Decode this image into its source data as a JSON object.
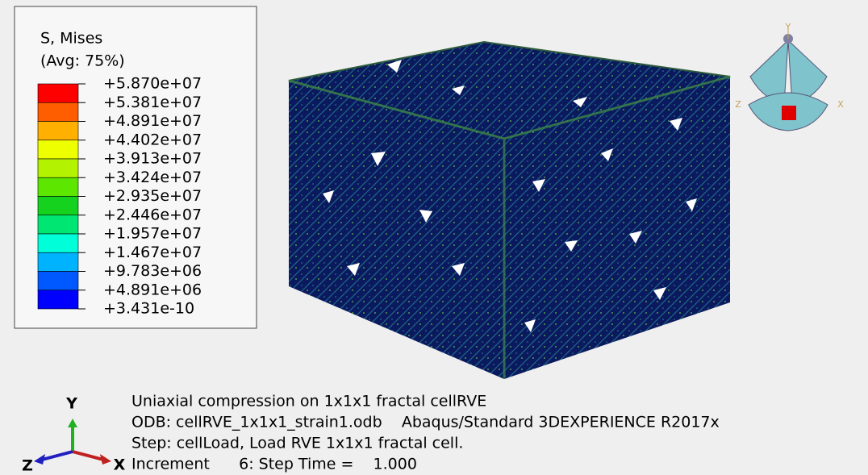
{
  "legend": {
    "title": "S, Mises",
    "subtitle": "(Avg: 75%)",
    "labels": [
      "+5.870e+07",
      "+5.381e+07",
      "+4.891e+07",
      "+4.402e+07",
      "+3.913e+07",
      "+3.424e+07",
      "+2.935e+07",
      "+2.446e+07",
      "+1.957e+07",
      "+1.467e+07",
      "+9.783e+06",
      "+4.891e+06",
      "+3.431e-10"
    ],
    "colors": [
      "#ff0000",
      "#ff5e00",
      "#ffb000",
      "#eeff00",
      "#b3f200",
      "#5ce600",
      "#14d21e",
      "#00e673",
      "#00ffd9",
      "#00b3ff",
      "#0059ff",
      "#0000ff"
    ]
  },
  "info": [
    "Uniaxial compression on 1x1x1 fractal cellRVE",
    "ODB: cellRVE_1x1x1_strain1.odb    Abaqus/Standard 3DEXPERIENCE R2017x",
    "Step: cellLoad, Load RVE 1x1x1 fractal cell.",
    "Increment      6: Step Time =    1.000"
  ],
  "triad": {
    "y": "Y",
    "z": "Z",
    "x": "X"
  },
  "view_cube": {
    "y": "Y",
    "z": "Z",
    "x": "X"
  }
}
